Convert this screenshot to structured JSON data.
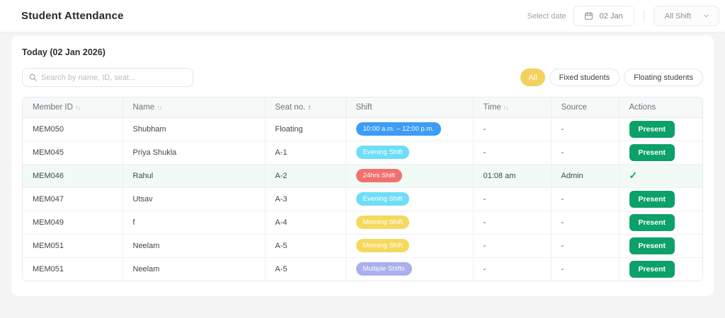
{
  "header": {
    "title": "Student Attendance",
    "select_date_label": "Select date",
    "date_value": "02 Jan",
    "shift_dropdown_value": "All Shift"
  },
  "toolbar": {
    "today_label": "Today (02 Jan 2026)",
    "search_placeholder": "Search by name, ID, seat...",
    "filters": [
      {
        "label": "All",
        "active": true
      },
      {
        "label": "Fixed students",
        "active": false
      },
      {
        "label": "Floating students",
        "active": false
      }
    ]
  },
  "table": {
    "columns": [
      {
        "label": "Member ID",
        "sort": "both"
      },
      {
        "label": "Name",
        "sort": "both"
      },
      {
        "label": "Seat no.",
        "sort": "asc"
      },
      {
        "label": "Shift",
        "sort": "none"
      },
      {
        "label": "Time",
        "sort": "both"
      },
      {
        "label": "Source",
        "sort": "none"
      },
      {
        "label": "Actions",
        "sort": "none"
      }
    ],
    "rows": [
      {
        "member_id": "MEM050",
        "name": "Shubham",
        "seat": "Floating",
        "shift_label": "10:00 a.m. – 12:00 p.m.",
        "shift_type": "time_range",
        "time": "-",
        "source": "-",
        "action": "present_button",
        "action_label": "Present",
        "highlighted": false
      },
      {
        "member_id": "MEM045",
        "name": "Priya Shukla",
        "seat": "A-1",
        "shift_label": "Evening Shift",
        "shift_type": "evening",
        "time": "-",
        "source": "-",
        "action": "present_button",
        "action_label": "Present",
        "highlighted": false
      },
      {
        "member_id": "MEM046",
        "name": "Rahul",
        "seat": "A-2",
        "shift_label": "24hrs Shift",
        "shift_type": "hrs24",
        "time": "01:08 am",
        "source": "Admin",
        "action": "check_mark",
        "action_label": "✓",
        "highlighted": true
      },
      {
        "member_id": "MEM047",
        "name": "Utsav",
        "seat": "A-3",
        "shift_label": "Evening Shift",
        "shift_type": "evening",
        "time": "-",
        "source": "-",
        "action": "present_button",
        "action_label": "Present",
        "highlighted": false
      },
      {
        "member_id": "MEM049",
        "name": "f",
        "seat": "A-4",
        "shift_label": "Morning Shift",
        "shift_type": "morning",
        "time": "-",
        "source": "-",
        "action": "present_button",
        "action_label": "Present",
        "highlighted": false
      },
      {
        "member_id": "MEM051",
        "name": "Neelam",
        "seat": "A-5",
        "shift_label": "Morning Shift",
        "shift_type": "morning",
        "time": "-",
        "source": "-",
        "action": "present_button",
        "action_label": "Present",
        "highlighted": false
      },
      {
        "member_id": "MEM051",
        "name": "Neelam",
        "seat": "A-5",
        "shift_label": "Multiple Shifts",
        "shift_type": "multiple",
        "time": "-",
        "source": "-",
        "action": "present_button",
        "action_label": "Present",
        "highlighted": false
      }
    ]
  },
  "icons": {
    "calendar": "calendar-icon",
    "chevron_down": "chevron-down-icon",
    "search": "search-icon",
    "sort_both": "↑↓",
    "sort_asc": "↑"
  },
  "colors": {
    "present_green": "#0ca168",
    "check_green": "#14a26b",
    "active_chip_yellow": "#f2d15f",
    "badge_time_range_blue": "#3d9cf5",
    "badge_evening_cyan": "#6edef8",
    "badge_24hrs_red": "#f0716f",
    "badge_morning_yellow": "#f5d95f",
    "badge_multiple_purple": "#a9b0ec",
    "row_highlight_mint": "#f1faf5",
    "sort_asc_green": "#17a26b"
  }
}
